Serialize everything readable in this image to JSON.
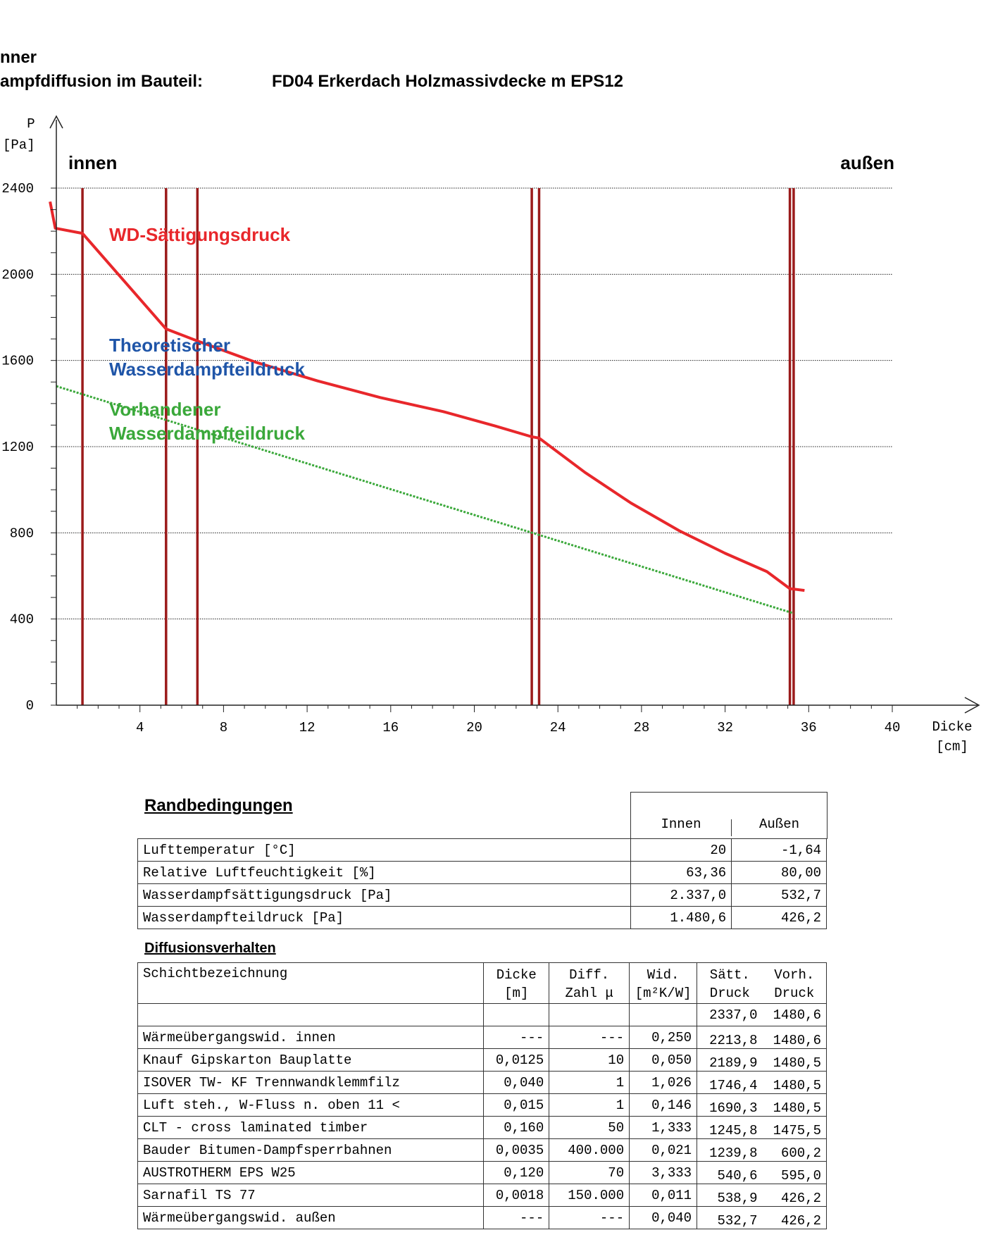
{
  "header": {
    "line1": "nner",
    "line2_label": "ampfdiffusion im Bauteil:",
    "line2_title": "FD04 Erkerdach Holzmassivdecke m EPS12"
  },
  "colors": {
    "saturation": "#e8272b",
    "theoretical": "#1f55a8",
    "actual": "#3aa83a",
    "layer": "#9b1b1b"
  },
  "chart_data": {
    "type": "line",
    "ylabel": "P",
    "yunit": "[Pa]",
    "xlabel": "Dicke",
    "xunit": "[cm]",
    "ylim": [
      0,
      2400
    ],
    "xlim": [
      0,
      40
    ],
    "yticks": [
      "0",
      "400",
      "800",
      "1200",
      "1600",
      "2000",
      "2400"
    ],
    "xticks": [
      "4",
      "8",
      "12",
      "16",
      "20",
      "24",
      "28",
      "32",
      "36",
      "40"
    ],
    "grid": true,
    "side_left": "innen",
    "side_right": "außen",
    "layer_boundaries": [
      1.25,
      5.25,
      6.75,
      22.75,
      23.1,
      35.1,
      35.28
    ],
    "series": [
      {
        "name": "WD-Sättigungsdruck",
        "points": [
          [
            -0.3,
            2337.0
          ],
          [
            -0.05,
            2213.8
          ],
          [
            1.25,
            2189.9
          ],
          [
            5.25,
            1746.4
          ],
          [
            6.75,
            1690.3
          ],
          [
            9.5,
            1593
          ],
          [
            12.5,
            1505
          ],
          [
            15.5,
            1428
          ],
          [
            18.5,
            1363
          ],
          [
            21.0,
            1296
          ],
          [
            22.75,
            1245.8
          ],
          [
            23.1,
            1239.8
          ],
          [
            25.3,
            1080
          ],
          [
            27.5,
            938
          ],
          [
            29.8,
            810
          ],
          [
            32.0,
            705
          ],
          [
            34.0,
            620
          ],
          [
            35.1,
            540.6
          ],
          [
            35.28,
            538.9
          ],
          [
            35.8,
            532.7
          ]
        ]
      },
      {
        "name": "Theoretischer Wasserdampfteildruck",
        "points": []
      },
      {
        "name": "Vorhandener Wasserdampfteildruck",
        "points": [
          [
            0.0,
            1480.6
          ],
          [
            35.28,
            426.2
          ]
        ]
      }
    ]
  },
  "boundary_table": {
    "title": "Randbedingungen",
    "col_inner": "Innen",
    "col_outer": "Außen",
    "rows": [
      {
        "label": "Lufttemperatur [°C]",
        "inner": "20",
        "outer": "-1,64"
      },
      {
        "label": "Relative  Luftfeuchtigkeit [%]",
        "inner": "63,36",
        "outer": "80,00"
      },
      {
        "label": "Wasserdampfsättigungsdruck [Pa]",
        "inner": "2.337,0",
        "outer": "532,7"
      },
      {
        "label": "Wasserdampfteildruck [Pa]",
        "inner": "1.480,6",
        "outer": "426,2"
      }
    ]
  },
  "diffusion_table": {
    "title": "Diffusionsverhalten",
    "head": {
      "name": "Schichtbezeichnung",
      "dicke1": "Dicke",
      "dicke2": "[m]",
      "diff1": "Diff.",
      "diff2": "Zahl μ",
      "wid1": "Wid.",
      "wid2": "[m²K/W]",
      "satt1": "Sätt.",
      "satt2": "Druck",
      "vorh1": "Vorh.",
      "vorh2": "Druck"
    },
    "initial": {
      "satt": "2337,0",
      "vorh": "1480,6"
    },
    "rows": [
      {
        "name": "Wärmeübergangswid. innen",
        "dicke": "---",
        "mu": "---",
        "wid": "0,250",
        "satt": "2213,8",
        "vorh": "1480,6"
      },
      {
        "name": "Knauf Gipskarton Bauplatte",
        "dicke": "0,0125",
        "mu": "10",
        "wid": "0,050",
        "satt": "2189,9",
        "vorh": "1480,5"
      },
      {
        "name": "ISOVER TW- KF Trennwandklemmfilz",
        "dicke": "0,040",
        "mu": "1",
        "wid": "1,026",
        "satt": "1746,4",
        "vorh": "1480,5"
      },
      {
        "name": "Luft steh., W-Fluss n. oben   11 <",
        "dicke": "0,015",
        "mu": "1",
        "wid": "0,146",
        "satt": "1690,3",
        "vorh": "1480,5"
      },
      {
        "name": "CLT - cross laminated timber",
        "dicke": "0,160",
        "mu": "50",
        "wid": "1,333",
        "satt": "1245,8",
        "vorh": "1475,5"
      },
      {
        "name": "Bauder Bitumen-Dampfsperrbahnen",
        "dicke": "0,0035",
        "mu": "400.000",
        "wid": "0,021",
        "satt": "1239,8",
        "vorh": "600,2"
      },
      {
        "name": "AUSTROTHERM EPS W25",
        "dicke": "0,120",
        "mu": "70",
        "wid": "3,333",
        "satt": "540,6",
        "vorh": "595,0"
      },
      {
        "name": "Sarnafil TS 77",
        "dicke": "0,0018",
        "mu": "150.000",
        "wid": "0,011",
        "satt": "538,9",
        "vorh": "426,2"
      },
      {
        "name": "Wärmeübergangswid. außen",
        "dicke": "---",
        "mu": "---",
        "wid": "0,040",
        "satt": "532,7",
        "vorh": "426,2"
      }
    ]
  }
}
